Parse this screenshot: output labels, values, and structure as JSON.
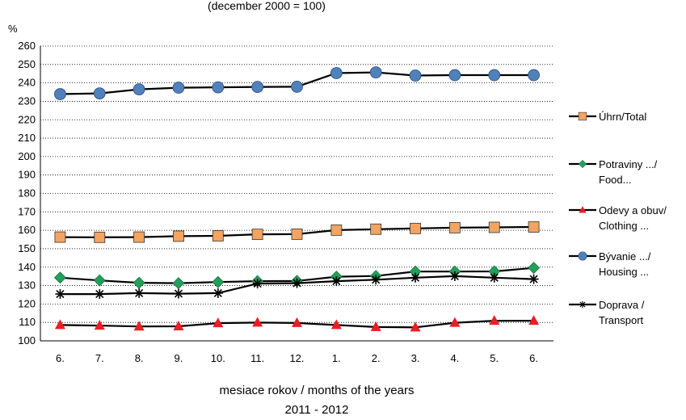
{
  "chart_data": {
    "type": "line",
    "subtitle": "(december 2000 = 100)",
    "y_unit": "%",
    "xlabel_line1": "mesiace rokov / months of the years",
    "xlabel_line2": "2011 - 2012",
    "categories": [
      "6.",
      "7.",
      "8.",
      "9.",
      "10.",
      "11.",
      "12.",
      "1.",
      "2.",
      "3.",
      "4.",
      "5.",
      "6."
    ],
    "ylim": [
      100,
      260
    ],
    "yticks": [
      100,
      110,
      120,
      130,
      140,
      150,
      160,
      170,
      180,
      190,
      200,
      210,
      220,
      230,
      240,
      250,
      260
    ],
    "grid": "horizontal-dotted",
    "legend_position": "right",
    "series": [
      {
        "name_line1": "Úhrn/Total",
        "name_line2": "",
        "marker": "square",
        "color": "#f4a460",
        "values": [
          156.3,
          156.2,
          156.3,
          156.8,
          157.0,
          157.8,
          157.9,
          160.1,
          160.6,
          161.0,
          161.4,
          161.6,
          161.8
        ]
      },
      {
        "name_line1": "Potraviny .../",
        "name_line2": "Food...",
        "marker": "diamond",
        "color": "#22a05a",
        "values": [
          134.3,
          132.8,
          131.5,
          131.3,
          131.9,
          132.4,
          132.5,
          134.8,
          135.2,
          137.6,
          137.6,
          137.7,
          139.6
        ]
      },
      {
        "name_line1": "Odevy a obuv/",
        "name_line2": "Clothing ...",
        "marker": "triangle",
        "color": "#ee1c25",
        "values": [
          108.6,
          108.3,
          107.8,
          107.9,
          109.6,
          109.9,
          109.7,
          108.6,
          107.5,
          107.3,
          109.8,
          110.9,
          110.9
        ]
      },
      {
        "name_line1": "Bývanie .../",
        "name_line2": "Housing ...",
        "marker": "circle",
        "color": "#4f81bd",
        "values": [
          233.9,
          234.3,
          236.5,
          237.4,
          237.6,
          237.8,
          237.9,
          245.3,
          245.7,
          244.0,
          244.2,
          244.2,
          244.2
        ]
      },
      {
        "name_line1": "Doprava /",
        "name_line2": "Transport",
        "marker": "star",
        "color": "#000000",
        "values": [
          125.4,
          125.4,
          125.9,
          125.6,
          125.9,
          131.1,
          131.3,
          132.4,
          133.2,
          134.3,
          135.1,
          134.3,
          133.5
        ]
      }
    ]
  }
}
